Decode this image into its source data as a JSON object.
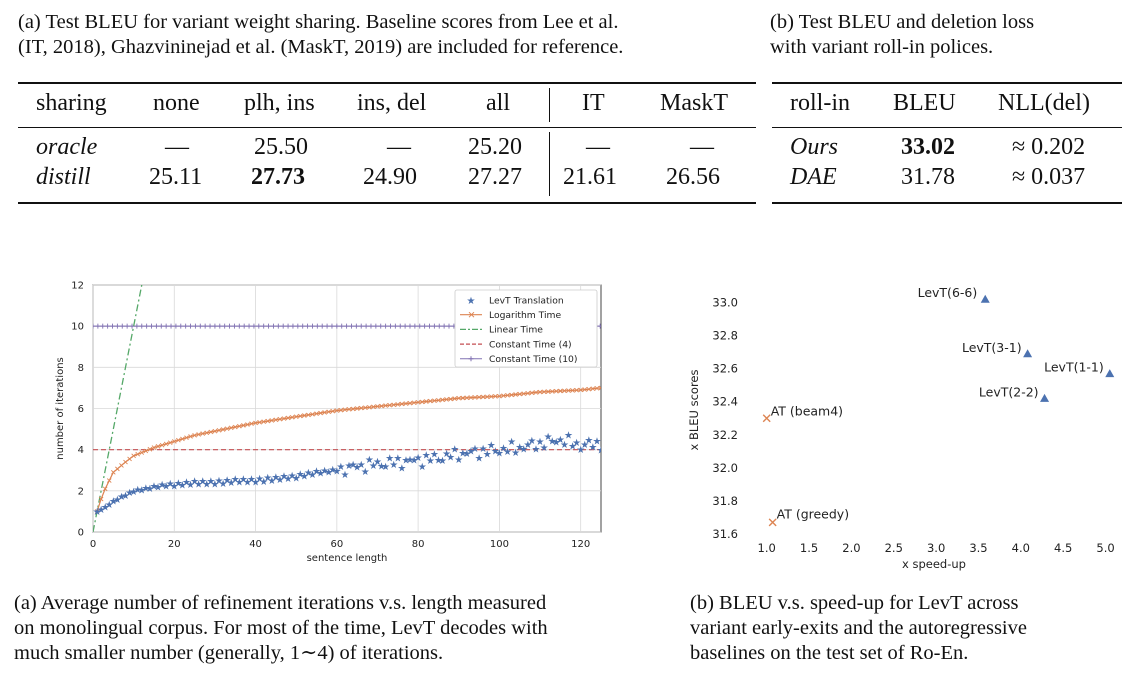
{
  "table_a": {
    "caption": "(a) Test BLEU for variant weight sharing. Baseline scores from Lee et al. (IT, 2018), Ghazvininejad et al. (MaskT, 2019) are included for reference.",
    "caption_line1": "(a) Test BLEU for variant weight sharing. Baseline scores from Lee et al.",
    "caption_line2": "(IT, 2018), Ghazvininejad et al. (MaskT, 2019) are included for reference.",
    "headers": [
      "sharing",
      "none",
      "plh, ins",
      "ins, del",
      "all",
      "IT",
      "MaskT"
    ],
    "rows": [
      {
        "label": "oracle",
        "none": "—",
        "plh_ins": "25.50",
        "ins_del": "—",
        "all": "25.20",
        "it": "—",
        "maskt": "—"
      },
      {
        "label": "distill",
        "none": "25.11",
        "plh_ins": "27.73",
        "ins_del": "24.90",
        "all": "27.27",
        "it": "21.61",
        "maskt": "26.56"
      }
    ]
  },
  "table_b": {
    "caption": "(b) Test BLEU and deletion loss with variant roll-in polices.",
    "caption_line1": "(b)  Test BLEU and deletion loss",
    "caption_line2": "with variant roll-in polices.",
    "headers": [
      "roll-in",
      "BLEU",
      "NLL(del)"
    ],
    "rows": [
      {
        "label": "Ours",
        "bleu": "33.02",
        "nll": "≈ 0.202"
      },
      {
        "label": "DAE",
        "bleu": "31.78",
        "nll": "≈ 0.037"
      }
    ]
  },
  "figure_a": {
    "caption": "(a) Average number of refinement iterations v.s. length measured on monolingual corpus. For most of the time, LevT decodes with much smaller number (generally, 1∼4) of iterations.",
    "caption_line1": "(a)  Average number of refinement iterations v.s. length measured",
    "caption_line2": "on monolingual corpus. For most of the time, LevT decodes with",
    "caption_line3": "much smaller number (generally, 1∼4) of iterations.",
    "chart_data": {
      "type": "line",
      "xlabel": "sentence length",
      "ylabel": "number of iterations",
      "xlim": [
        0,
        125
      ],
      "ylim": [
        0,
        12
      ],
      "xticks": [
        "0",
        "20",
        "40",
        "60",
        "80",
        "100",
        "120"
      ],
      "yticks": [
        "0",
        "2",
        "4",
        "6",
        "8",
        "10",
        "12"
      ],
      "series": [
        {
          "name": "LevT Translation",
          "marker": "star",
          "color": "#4c72b0",
          "x": [
            1,
            3,
            5,
            8,
            10,
            13,
            15,
            18,
            20,
            25,
            30,
            35,
            40,
            45,
            50,
            55,
            60,
            65,
            70,
            75,
            80,
            85,
            90,
            95,
            100,
            105,
            110,
            115,
            120,
            124
          ],
          "y": [
            1.0,
            1.2,
            1.5,
            1.8,
            2.0,
            2.1,
            2.2,
            2.3,
            2.3,
            2.4,
            2.4,
            2.5,
            2.5,
            2.6,
            2.7,
            2.9,
            3.0,
            3.2,
            3.3,
            3.4,
            3.5,
            3.6,
            3.8,
            3.9,
            4.0,
            4.1,
            4.3,
            4.5,
            4.2,
            4.3
          ]
        },
        {
          "name": "Logarithm Time",
          "marker": "x",
          "color": "#dd8452",
          "x": [
            1,
            2,
            3,
            5,
            8,
            10,
            15,
            20,
            25,
            30,
            40,
            50,
            60,
            70,
            80,
            90,
            100,
            110,
            120,
            125
          ],
          "y": [
            1.0,
            1.6,
            2.1,
            2.9,
            3.4,
            3.7,
            4.1,
            4.4,
            4.7,
            4.9,
            5.3,
            5.6,
            5.9,
            6.1,
            6.3,
            6.5,
            6.6,
            6.8,
            6.9,
            7.0
          ]
        },
        {
          "name": "Linear Time",
          "style": "dashdot",
          "color": "#55a868",
          "x": [
            0,
            12
          ],
          "y": [
            0,
            12
          ]
        },
        {
          "name": "Constant Time (4)",
          "style": "dashed",
          "color": "#c44e52",
          "x": [
            0,
            125
          ],
          "y": [
            4,
            4
          ]
        },
        {
          "name": "Constant Time (10)",
          "marker": "plus",
          "color": "#8172b3",
          "x": [
            0,
            125
          ],
          "y": [
            10,
            10
          ]
        }
      ]
    }
  },
  "figure_b": {
    "caption": "(b) BLEU v.s. speed-up for LevT across variant early-exits and the autoregressive baselines on the test set of Ro-En.",
    "caption_line1": "(b)  BLEU v.s.  speed-up for LevT across",
    "caption_line2": "variant early-exits and the autoregressive",
    "caption_line3": "baselines on the test set of Ro-En.",
    "chart_data": {
      "type": "scatter",
      "xlabel": "x speed-up",
      "ylabel": "x BLEU scores",
      "xlim": [
        0.85,
        5.1
      ],
      "ylim": [
        31.6,
        33.1
      ],
      "xticks": [
        "1.0",
        "1.5",
        "2.0",
        "2.5",
        "3.0",
        "3.5",
        "4.0",
        "4.5",
        "5.0"
      ],
      "yticks": [
        "31.6",
        "31.8",
        "32.0",
        "32.2",
        "32.4",
        "32.6",
        "32.8",
        "33.0"
      ],
      "points": [
        {
          "label": "LevT(6-6)",
          "x": 3.58,
          "y": 33.02,
          "marker": "triangle",
          "color": "#4c72b0"
        },
        {
          "label": "LevT(3-1)",
          "x": 4.08,
          "y": 32.69,
          "marker": "triangle",
          "color": "#4c72b0"
        },
        {
          "label": "LevT(1-1)",
          "x": 5.05,
          "y": 32.57,
          "marker": "triangle",
          "color": "#4c72b0"
        },
        {
          "label": "LevT(2-2)",
          "x": 4.28,
          "y": 32.42,
          "marker": "triangle",
          "color": "#4c72b0"
        },
        {
          "label": "AT (beam4)",
          "x": 1.0,
          "y": 32.3,
          "marker": "x",
          "color": "#dd8452"
        },
        {
          "label": "AT (greedy)",
          "x": 1.07,
          "y": 31.67,
          "marker": "x",
          "color": "#dd8452"
        }
      ]
    }
  }
}
